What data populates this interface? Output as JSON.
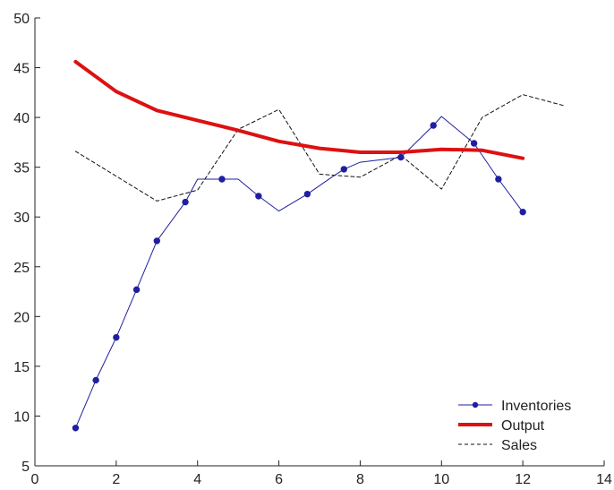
{
  "chart_data": {
    "type": "line",
    "title": "",
    "xlabel": "",
    "ylabel": "",
    "xlim": [
      0,
      14
    ],
    "ylim": [
      5,
      50
    ],
    "x_ticks": [
      0,
      2,
      4,
      6,
      8,
      10,
      12,
      14
    ],
    "y_ticks": [
      5,
      10,
      15,
      20,
      25,
      30,
      35,
      40,
      45,
      50
    ],
    "grid": false,
    "legend_position": "bottom-right",
    "series": [
      {
        "name": "Inventories",
        "color": "#1f1fa0",
        "style": "solid-with-markers",
        "x": [
          1,
          1.5,
          2,
          2.5,
          3,
          3.7,
          4,
          4.6,
          5,
          5.5,
          6,
          6.7,
          7.3,
          7.6,
          8,
          9,
          9.8,
          10,
          10.8,
          11.4,
          12
        ],
        "y": [
          8.8,
          13.6,
          17.9,
          22.7,
          27.6,
          31.5,
          33.8,
          33.8,
          33.8,
          32.1,
          30.6,
          32.3,
          34.0,
          34.8,
          35.5,
          36.0,
          39.2,
          40.1,
          37.4,
          33.8,
          30.5
        ],
        "markers_at": [
          1,
          1.5,
          2,
          2.5,
          3,
          3.7,
          4.6,
          5.5,
          6.7,
          7.6,
          9,
          9.8,
          10.8,
          11.4,
          12
        ]
      },
      {
        "name": "Output",
        "color": "#dd1111",
        "style": "thick-solid",
        "x": [
          1,
          2,
          3,
          4,
          5,
          6,
          7,
          8,
          9,
          10,
          11,
          12
        ],
        "y": [
          45.6,
          42.6,
          40.7,
          39.7,
          38.7,
          37.6,
          36.9,
          36.5,
          36.5,
          36.8,
          36.7,
          35.9
        ]
      },
      {
        "name": "Sales",
        "color": "#111111",
        "style": "dashed",
        "x": [
          1,
          2,
          3,
          4,
          5,
          6,
          7,
          8,
          9,
          10,
          11,
          12,
          13
        ],
        "y": [
          36.6,
          34.1,
          31.6,
          32.7,
          38.8,
          40.8,
          34.3,
          34.0,
          36.2,
          32.8,
          40.0,
          42.3,
          41.2
        ]
      }
    ]
  }
}
